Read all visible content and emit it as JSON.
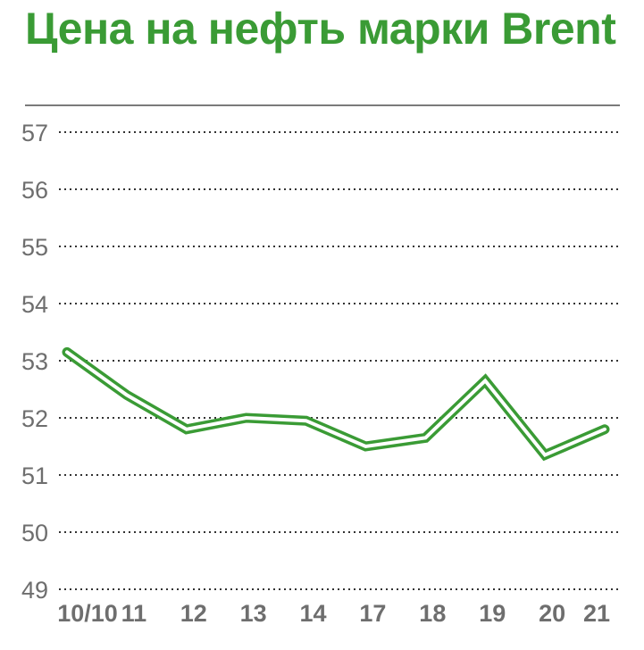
{
  "chart_data": {
    "type": "line",
    "title": "Цена на нефть марки Brent",
    "categories": [
      "10/10",
      "11",
      "12",
      "13",
      "14",
      "17",
      "18",
      "19",
      "20",
      "21"
    ],
    "series": [
      {
        "values": [
          53.15,
          52.4,
          51.8,
          52.0,
          51.95,
          51.5,
          51.65,
          52.65,
          51.35,
          51.8
        ]
      }
    ],
    "y_ticks": [
      "57",
      "56",
      "55",
      "54",
      "53",
      "52",
      "51",
      "50",
      "49"
    ],
    "ylim": [
      49,
      57
    ],
    "grid": "dotted horizontal",
    "line_color": "#3a9b35",
    "title_color": "#3a9b35",
    "tick_color": "#6e6e6e"
  }
}
